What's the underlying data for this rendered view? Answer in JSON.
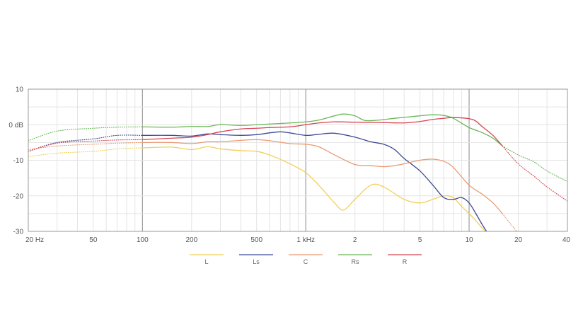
{
  "chart_data": {
    "type": "line",
    "title": "",
    "xlabel": "",
    "ylabel": "",
    "x_scale": "log",
    "xlim": [
      20,
      40000
    ],
    "ylim": [
      -30,
      10
    ],
    "grid": true,
    "legend_position": "bottom-center",
    "x_ticks": [
      {
        "value": 20,
        "label": "20 Hz"
      },
      {
        "value": 50,
        "label": "50"
      },
      {
        "value": 100,
        "label": "100"
      },
      {
        "value": 200,
        "label": "200"
      },
      {
        "value": 500,
        "label": "500"
      },
      {
        "value": 1000,
        "label": "1 kHz"
      },
      {
        "value": 2000,
        "label": "2"
      },
      {
        "value": 5000,
        "label": "5"
      },
      {
        "value": 10000,
        "label": "10"
      },
      {
        "value": 20000,
        "label": "20"
      },
      {
        "value": 40000,
        "label": "40"
      }
    ],
    "y_ticks": [
      {
        "value": 10,
        "label": "10"
      },
      {
        "value": 0,
        "label": "0 dB"
      },
      {
        "value": -10,
        "label": "-10"
      },
      {
        "value": -20,
        "label": "-20"
      },
      {
        "value": -30,
        "label": "-30"
      }
    ],
    "series": [
      {
        "name": "L",
        "color": "#f2cf56",
        "dotted_low": [
          [
            20,
            -9
          ],
          [
            30,
            -8
          ],
          [
            50,
            -7.5
          ],
          [
            70,
            -6.8
          ],
          [
            100,
            -6.5
          ]
        ],
        "solid": [
          [
            100,
            -6.5
          ],
          [
            150,
            -6.3
          ],
          [
            200,
            -7
          ],
          [
            250,
            -6.2
          ],
          [
            300,
            -6.8
          ],
          [
            400,
            -7.3
          ],
          [
            500,
            -7.5
          ],
          [
            600,
            -8.5
          ],
          [
            800,
            -11
          ],
          [
            1000,
            -13.5
          ],
          [
            1200,
            -17
          ],
          [
            1500,
            -22
          ],
          [
            1700,
            -24
          ],
          [
            2000,
            -21
          ],
          [
            2500,
            -17
          ],
          [
            3000,
            -17.5
          ],
          [
            4000,
            -21
          ],
          [
            5000,
            -22
          ],
          [
            6000,
            -21
          ],
          [
            7000,
            -20
          ],
          [
            8000,
            -20.5
          ],
          [
            9000,
            -23
          ],
          [
            10000,
            -25
          ],
          [
            11000,
            -27
          ],
          [
            12000,
            -29
          ],
          [
            13000,
            -30.5
          ]
        ],
        "dotted_high": []
      },
      {
        "name": "Ls",
        "color": "#3f4a96",
        "dotted_low": [
          [
            20,
            -7.5
          ],
          [
            30,
            -5
          ],
          [
            50,
            -4
          ],
          [
            70,
            -3
          ],
          [
            100,
            -3
          ]
        ],
        "solid": [
          [
            100,
            -3
          ],
          [
            150,
            -3
          ],
          [
            200,
            -3.2
          ],
          [
            250,
            -2.6
          ],
          [
            300,
            -2.8
          ],
          [
            400,
            -3
          ],
          [
            500,
            -2.8
          ],
          [
            600,
            -2.3
          ],
          [
            700,
            -2
          ],
          [
            800,
            -2.3
          ],
          [
            1000,
            -3
          ],
          [
            1200,
            -2.7
          ],
          [
            1500,
            -2.4
          ],
          [
            2000,
            -3.5
          ],
          [
            2500,
            -4.8
          ],
          [
            3000,
            -5.5
          ],
          [
            3500,
            -7
          ],
          [
            4000,
            -9.5
          ],
          [
            5000,
            -13
          ],
          [
            6000,
            -17
          ],
          [
            7000,
            -20.5
          ],
          [
            8000,
            -21
          ],
          [
            9000,
            -20.5
          ],
          [
            10000,
            -22
          ],
          [
            11000,
            -25
          ],
          [
            12000,
            -28
          ],
          [
            13000,
            -30.5
          ]
        ],
        "dotted_high": []
      },
      {
        "name": "C",
        "color": "#e99a74",
        "dotted_low": [
          [
            20,
            -7
          ],
          [
            30,
            -6
          ],
          [
            50,
            -5.5
          ],
          [
            70,
            -5.2
          ],
          [
            100,
            -5
          ]
        ],
        "solid": [
          [
            100,
            -5
          ],
          [
            150,
            -5
          ],
          [
            200,
            -5.3
          ],
          [
            250,
            -4.8
          ],
          [
            300,
            -4.8
          ],
          [
            400,
            -4.4
          ],
          [
            500,
            -4.2
          ],
          [
            600,
            -4.5
          ],
          [
            800,
            -5.3
          ],
          [
            1000,
            -5.5
          ],
          [
            1200,
            -6.2
          ],
          [
            1500,
            -8.5
          ],
          [
            2000,
            -11.2
          ],
          [
            2500,
            -11.5
          ],
          [
            3000,
            -11.8
          ],
          [
            3500,
            -11.5
          ],
          [
            4000,
            -11
          ],
          [
            5000,
            -10
          ],
          [
            6000,
            -9.7
          ],
          [
            7000,
            -10.3
          ],
          [
            8000,
            -12
          ],
          [
            10000,
            -17
          ],
          [
            12000,
            -19.5
          ],
          [
            14000,
            -22
          ],
          [
            16000,
            -25
          ]
        ],
        "dotted_high": [
          [
            16000,
            -25
          ],
          [
            18000,
            -28
          ],
          [
            20000,
            -30.5
          ]
        ]
      },
      {
        "name": "Rs",
        "color": "#6bb756",
        "dotted_low": [
          [
            20,
            -4.5
          ],
          [
            30,
            -1.8
          ],
          [
            50,
            -1
          ],
          [
            70,
            -0.7
          ],
          [
            100,
            -0.6
          ]
        ],
        "solid": [
          [
            100,
            -0.6
          ],
          [
            150,
            -0.7
          ],
          [
            200,
            -0.5
          ],
          [
            250,
            -0.5
          ],
          [
            300,
            0
          ],
          [
            400,
            -0.2
          ],
          [
            500,
            0
          ],
          [
            600,
            0.2
          ],
          [
            800,
            0.5
          ],
          [
            1000,
            0.8
          ],
          [
            1200,
            1.3
          ],
          [
            1500,
            2.5
          ],
          [
            1700,
            3
          ],
          [
            2000,
            2.5
          ],
          [
            2300,
            1.2
          ],
          [
            2800,
            1.3
          ],
          [
            3500,
            1.8
          ],
          [
            5000,
            2.5
          ],
          [
            6000,
            2.8
          ],
          [
            7000,
            2.6
          ],
          [
            8000,
            1.8
          ],
          [
            10000,
            -0.8
          ],
          [
            12000,
            -2.2
          ],
          [
            14000,
            -3.8
          ],
          [
            16000,
            -6
          ]
        ],
        "dotted_high": [
          [
            16000,
            -6
          ],
          [
            20000,
            -8.5
          ],
          [
            25000,
            -10.5
          ],
          [
            30000,
            -13
          ],
          [
            40000,
            -16
          ]
        ]
      },
      {
        "name": "R",
        "color": "#d64454",
        "dotted_low": [
          [
            20,
            -7.5
          ],
          [
            30,
            -5.2
          ],
          [
            50,
            -4.6
          ],
          [
            70,
            -4.3
          ],
          [
            100,
            -4.2
          ]
        ],
        "solid": [
          [
            100,
            -4.2
          ],
          [
            150,
            -3.8
          ],
          [
            200,
            -3.5
          ],
          [
            250,
            -2.8
          ],
          [
            300,
            -2
          ],
          [
            400,
            -1.2
          ],
          [
            500,
            -1
          ],
          [
            600,
            -0.8
          ],
          [
            800,
            -0.6
          ],
          [
            1000,
            0
          ],
          [
            1200,
            0.5
          ],
          [
            1500,
            0.8
          ],
          [
            2000,
            0.7
          ],
          [
            3000,
            0.6
          ],
          [
            4000,
            0.5
          ],
          [
            5000,
            0.9
          ],
          [
            6000,
            1.5
          ],
          [
            7000,
            1.8
          ],
          [
            8000,
            2
          ],
          [
            10000,
            1.7
          ],
          [
            11000,
            1
          ],
          [
            12000,
            -0.5
          ],
          [
            14000,
            -3
          ],
          [
            16000,
            -6
          ]
        ],
        "dotted_high": [
          [
            16000,
            -6
          ],
          [
            20000,
            -11
          ],
          [
            25000,
            -14.5
          ],
          [
            30000,
            -17.5
          ],
          [
            40000,
            -21.5
          ]
        ]
      }
    ]
  }
}
